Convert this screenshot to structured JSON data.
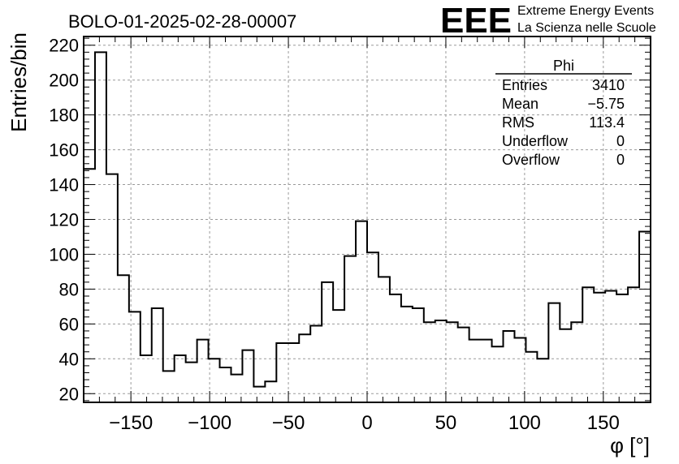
{
  "header": {
    "run_title": "BOLO-01-2025-02-28-00007",
    "logo_text": "EEE",
    "logo_line1": "Extreme Energy Events",
    "logo_line2": "La Scienza nelle Scuole",
    "logo_color": "#1a1aff"
  },
  "stats_box": {
    "title": "Phi",
    "rows": [
      {
        "label": "Entries",
        "value": "3410"
      },
      {
        "label": "Mean",
        "value": "−5.75"
      },
      {
        "label": "RMS",
        "value": "113.4"
      },
      {
        "label": "Underflow",
        "value": "0"
      },
      {
        "label": "Overflow",
        "value": "0"
      }
    ]
  },
  "chart_data": {
    "type": "bar",
    "style": "step-histogram",
    "title": "BOLO-01-2025-02-28-00007",
    "xlabel": "φ [°]",
    "ylabel": "Entries/bin",
    "xlim": [
      -180,
      180
    ],
    "ylim": [
      15,
      225
    ],
    "grid": true,
    "bin_width": 7.2,
    "bin_start": -180,
    "x_ticks": [
      -150,
      -100,
      -50,
      0,
      50,
      100,
      150
    ],
    "x_tick_labels": [
      "−150",
      "−100",
      "−50",
      "0",
      "50",
      "100",
      "150"
    ],
    "y_ticks": [
      20,
      40,
      60,
      80,
      100,
      120,
      140,
      160,
      180,
      200,
      220
    ],
    "y_tick_labels": [
      "20",
      "40",
      "60",
      "80",
      "100",
      "120",
      "140",
      "160",
      "180",
      "200",
      "220"
    ],
    "values": [
      149,
      216,
      146,
      88,
      67,
      42,
      69,
      33,
      42,
      38,
      51,
      40,
      35,
      31,
      45,
      24,
      27,
      49,
      49,
      54,
      59,
      84,
      68,
      99,
      119,
      101,
      87,
      77,
      70,
      69,
      61,
      62,
      61,
      58,
      51,
      51,
      47,
      56,
      52,
      44,
      40,
      72,
      57,
      61,
      81,
      78,
      79,
      77,
      81,
      113
    ]
  }
}
